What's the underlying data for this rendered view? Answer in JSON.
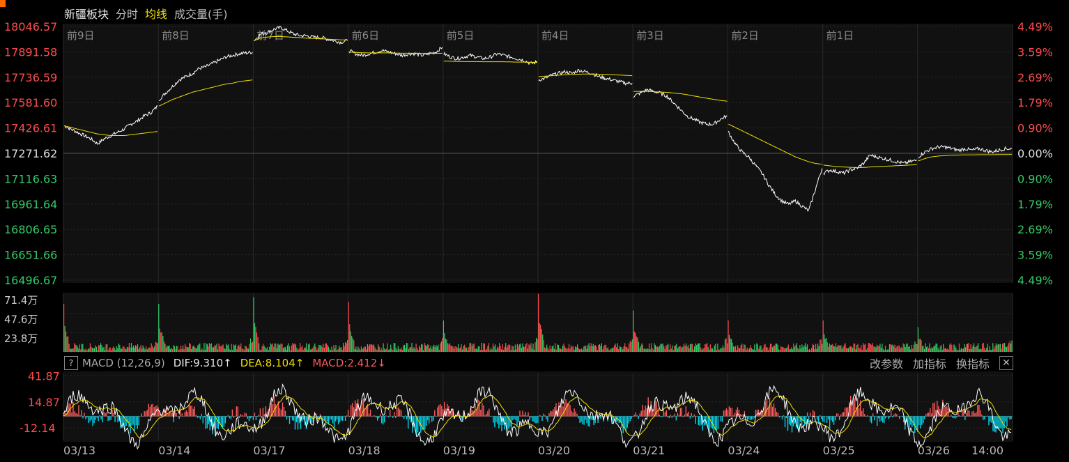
{
  "header": {
    "title": "新疆板块",
    "tabs": [
      "分时",
      "均线",
      "成交量(手)"
    ],
    "active_tab": 1
  },
  "colors": {
    "up": "#ff4d4d",
    "down": "#33cc66",
    "price_line": "#ffffff",
    "avg_line": "#f0e000",
    "macd_pos": "#ff5a5a",
    "macd_neg": "#00d8f0",
    "grid": "#2a2a2a",
    "background": "#000000"
  },
  "chart_data": [
    {
      "type": "line",
      "name": "price",
      "y_left_ticks": [
        "18046.57",
        "17891.58",
        "17736.59",
        "17581.60",
        "17426.61",
        "17271.62",
        "17116.63",
        "16961.64",
        "16806.65",
        "16651.66",
        "16496.67"
      ],
      "y_right_ticks": [
        "4.49%",
        "3.59%",
        "2.69%",
        "1.79%",
        "0.90%",
        "0.00%",
        "0.90%",
        "1.79%",
        "2.69%",
        "3.59%",
        "4.49%"
      ],
      "ylim": [
        16496.67,
        18046.57
      ],
      "baseline": 17271.62,
      "day_labels": [
        "前9日",
        "前8日",
        "前7日",
        "前6日",
        "前5日",
        "前4日",
        "前3日",
        "前2日",
        "前1日"
      ],
      "series": [
        {
          "key": "price",
          "days": [
            [
              17440,
              17420,
              17400,
              17380,
              17360,
              17330,
              17360,
              17380,
              17400,
              17420,
              17450,
              17470,
              17500,
              17520,
              17560
            ],
            [
              17600,
              17640,
              17680,
              17720,
              17740,
              17760,
              17790,
              17800,
              17820,
              17840,
              17860,
              17870,
              17880,
              17885,
              17890
            ],
            [
              17960,
              18000,
              18010,
              18030,
              18040,
              18020,
              18000,
              17990,
              17990,
              17980,
              17980,
              17970,
              17960,
              17950,
              17960
            ],
            [
              17900,
              17880,
              17870,
              17880,
              17890,
              17900,
              17890,
              17880,
              17870,
              17880,
              17880,
              17870,
              17880,
              17890,
              17920
            ],
            [
              17880,
              17860,
              17850,
              17860,
              17870,
              17860,
              17850,
              17860,
              17880,
              17870,
              17860,
              17850,
              17840,
              17820,
              17830
            ],
            [
              17720,
              17730,
              17750,
              17760,
              17770,
              17760,
              17780,
              17770,
              17760,
              17740,
              17730,
              17720,
              17710,
              17700,
              17700
            ],
            [
              17620,
              17640,
              17660,
              17650,
              17640,
              17620,
              17580,
              17540,
              17500,
              17480,
              17460,
              17450,
              17450,
              17480,
              17500
            ],
            [
              17400,
              17330,
              17280,
              17250,
              17200,
              17150,
              17080,
              17020,
              16980,
              16960,
              16980,
              16950,
              16920,
              17050,
              17180
            ],
            [
              17150,
              17170,
              17160,
              17150,
              17170,
              17180,
              17210,
              17260,
              17250,
              17240,
              17230,
              17220,
              17210,
              17220,
              17230
            ],
            [
              17250,
              17280,
              17300,
              17310,
              17310,
              17300,
              17290,
              17300,
              17290,
              17300,
              17290,
              17280,
              17290,
              17300,
              17300
            ]
          ]
        },
        {
          "key": "avg",
          "days": [
            [
              17440,
              17430,
              17420,
              17410,
              17400,
              17390,
              17385,
              17380,
              17380,
              17380,
              17385,
              17390,
              17395,
              17400,
              17405
            ],
            [
              17560,
              17580,
              17600,
              17615,
              17630,
              17645,
              17655,
              17665,
              17675,
              17685,
              17695,
              17700,
              17710,
              17715,
              17720
            ],
            [
              17960,
              17975,
              17982,
              17985,
              17985,
              17983,
              17980,
              17978,
              17975,
              17973,
              17971,
              17969,
              17967,
              17965,
              17965
            ],
            [
              17890,
              17888,
              17886,
              17885,
              17885,
              17885,
              17885,
              17884,
              17883,
              17883,
              17883,
              17882,
              17882,
              17882,
              17883
            ],
            [
              17835,
              17834,
              17833,
              17832,
              17832,
              17832,
              17831,
              17831,
              17831,
              17831,
              17830,
              17829,
              17829,
              17828,
              17827
            ],
            [
              17740,
              17743,
              17746,
              17749,
              17752,
              17754,
              17755,
              17756,
              17756,
              17755,
              17754,
              17752,
              17750,
              17748,
              17746
            ],
            [
              17650,
              17650,
              17650,
              17648,
              17646,
              17644,
              17640,
              17636,
              17630,
              17622,
              17615,
              17608,
              17601,
              17595,
              17590
            ],
            [
              17450,
              17430,
              17410,
              17390,
              17370,
              17350,
              17330,
              17310,
              17290,
              17270,
              17250,
              17235,
              17220,
              17210,
              17205
            ],
            [
              17200,
              17195,
              17190,
              17188,
              17186,
              17184,
              17185,
              17188,
              17190,
              17192,
              17194,
              17196,
              17198,
              17200,
              17202
            ],
            [
              17225,
              17240,
              17250,
              17255,
              17258,
              17260,
              17261,
              17262,
              17262,
              17263,
              17263,
              17263,
              17264,
              17264,
              17265
            ]
          ]
        }
      ]
    },
    {
      "type": "bar",
      "name": "volume",
      "y_ticks": [
        "71.4万",
        "47.6万",
        "23.8万"
      ],
      "ylim": [
        0,
        71.4
      ],
      "peaks": [
        58,
        58,
        66,
        60,
        38,
        70,
        50,
        38,
        38,
        30
      ]
    },
    {
      "type": "bar",
      "name": "macd",
      "y_ticks": [
        "41.87",
        "14.87",
        "-12.14"
      ],
      "ylim": [
        -25,
        45
      ],
      "dif": 9.31,
      "dea": 8.104,
      "macd": 2.412
    }
  ],
  "macd_header": {
    "help": "?",
    "name": "MACD (12,26,9)",
    "dif": "DIF:9.310↑",
    "dea": "DEA:8.104↑",
    "macd": "MACD:2.412↓",
    "tools": [
      "改参数",
      "加指标",
      "换指标"
    ],
    "close": "✕"
  },
  "x_axis": {
    "dates": [
      "03/13",
      "03/14",
      "03/17",
      "03/18",
      "03/19",
      "03/20",
      "03/21",
      "03/24",
      "03/25",
      "03/26"
    ],
    "last_time": "14:00"
  }
}
